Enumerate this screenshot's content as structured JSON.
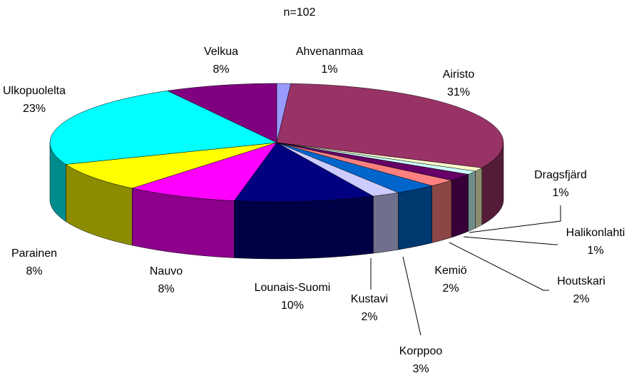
{
  "chart_data": {
    "type": "pie3d",
    "title": "n=102",
    "categories": [
      "Ahvenanmaa",
      "Airisto",
      "Dragsfjärd",
      "Halikonlahti",
      "Houtskari",
      "Kemiö",
      "Korppoo",
      "Kustavi",
      "Lounais-Suomi",
      "Nauvo",
      "Parainen",
      "Ulkopuolelta",
      "Velkua"
    ],
    "values": [
      1,
      31,
      1,
      1,
      2,
      2,
      3,
      2,
      10,
      8,
      8,
      23,
      8
    ],
    "value_labels": [
      "1%",
      "31%",
      "1%",
      "1%",
      "2%",
      "2%",
      "3%",
      "2%",
      "10%",
      "8%",
      "8%",
      "23%",
      "8%"
    ],
    "colors": [
      "#9999ff",
      "#993366",
      "#ffffcc",
      "#ccffff",
      "#660066",
      "#ff8080",
      "#0066cc",
      "#ccccff",
      "#000080",
      "#ff00ff",
      "#ffff00",
      "#00ffff",
      "#800080"
    ]
  }
}
